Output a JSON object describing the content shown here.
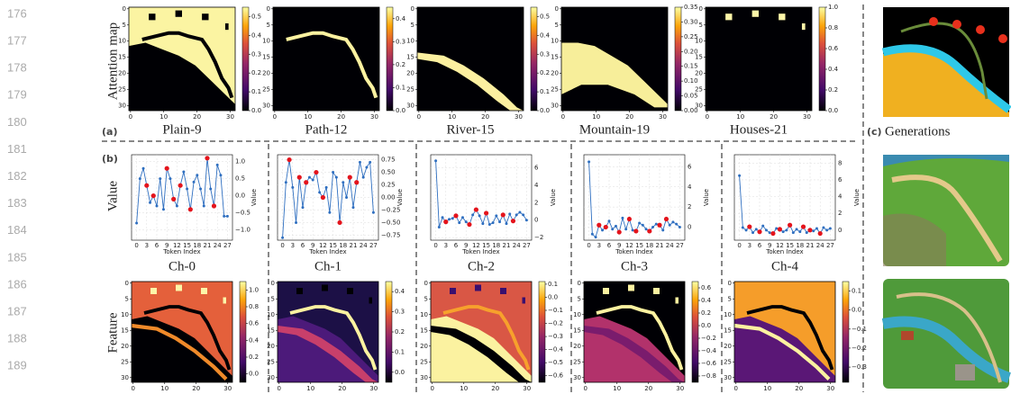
{
  "line_numbers": [
    "176",
    "177",
    "178",
    "179",
    "180",
    "181",
    "182",
    "183",
    "184",
    "185",
    "186",
    "187",
    "188",
    "189"
  ],
  "panel_a": {
    "label": "(a)",
    "row_label": "Attention map",
    "xticks": [
      0,
      10,
      20,
      30
    ],
    "yticks": [
      0,
      5,
      10,
      15,
      20,
      25,
      30
    ],
    "maps": [
      {
        "title": "Plain-9",
        "colorbar": {
          "lim": [
            0,
            0.55
          ],
          "ticks": [
            {
              "value": 0,
              "label": "0.0"
            },
            {
              "value": 0.1,
              "label": "0.1"
            },
            {
              "value": 0.2,
              "label": "0.2"
            },
            {
              "value": 0.3,
              "label": "0.3"
            },
            {
              "value": 0.4,
              "label": "0.4"
            },
            {
              "value": 0.5,
              "label": "0.5"
            }
          ]
        }
      },
      {
        "title": "Path-12",
        "colorbar": {
          "lim": [
            0,
            0.45
          ],
          "ticks": [
            {
              "value": 0,
              "label": "0.0"
            },
            {
              "value": 0.1,
              "label": "0.1"
            },
            {
              "value": 0.2,
              "label": "0.2"
            },
            {
              "value": 0.3,
              "label": "0.3"
            },
            {
              "value": 0.4,
              "label": "0.4"
            }
          ]
        }
      },
      {
        "title": "River-15",
        "colorbar": {
          "lim": [
            0,
            0.55
          ],
          "ticks": [
            {
              "value": 0,
              "label": "0.0"
            },
            {
              "value": 0.1,
              "label": "0.1"
            },
            {
              "value": 0.2,
              "label": "0.2"
            },
            {
              "value": 0.3,
              "label": "0.3"
            },
            {
              "value": 0.4,
              "label": "0.4"
            },
            {
              "value": 0.5,
              "label": "0.5"
            }
          ]
        }
      },
      {
        "title": "Mountain-19",
        "colorbar": {
          "lim": [
            0,
            0.35
          ],
          "ticks": [
            {
              "value": 0,
              "label": "0.00"
            },
            {
              "value": 0.05,
              "label": "0.05"
            },
            {
              "value": 0.1,
              "label": "0.10"
            },
            {
              "value": 0.15,
              "label": "0.15"
            },
            {
              "value": 0.2,
              "label": "0.20"
            },
            {
              "value": 0.25,
              "label": "0.25"
            },
            {
              "value": 0.3,
              "label": "0.30"
            },
            {
              "value": 0.35,
              "label": "0.35"
            }
          ]
        }
      },
      {
        "title": "Houses-21",
        "colorbar": {
          "lim": [
            0,
            1.0
          ],
          "ticks": [
            {
              "value": 0,
              "label": "0.0"
            },
            {
              "value": 0.2,
              "label": "0.2"
            },
            {
              "value": 0.4,
              "label": "0.4"
            },
            {
              "value": 0.6,
              "label": "0.6"
            },
            {
              "value": 0.8,
              "label": "0.8"
            },
            {
              "value": 1.0,
              "label": "1.0"
            }
          ]
        }
      }
    ]
  },
  "panel_b": {
    "label": "(b)",
    "value_row_label": "Value",
    "feature_row_label": "Feature",
    "x_label": "Token Index",
    "y_label": "Value",
    "xlim": [
      -1.5,
      28.5
    ],
    "xticks": [
      0,
      3,
      6,
      9,
      12,
      15,
      18,
      21,
      24,
      27
    ],
    "map_xticks": [
      0,
      10,
      20,
      30
    ],
    "map_yticks": [
      0,
      5,
      10,
      15,
      20,
      25,
      30
    ],
    "channels": [
      {
        "title": "Ch-0",
        "values": [
          -0.8,
          0.5,
          0.8,
          0.3,
          -0.2,
          0.0,
          -0.3,
          0.5,
          -0.4,
          0.8,
          0.5,
          -0.1,
          -0.3,
          0.3,
          0.7,
          0.2,
          -0.4,
          0.4,
          0.6,
          0.2,
          -0.3,
          1.1,
          0.2,
          -0.3,
          0.9,
          0.6,
          -0.6,
          -0.6
        ],
        "highlight": [
          3,
          5,
          9,
          11,
          13,
          16,
          21,
          23
        ],
        "ylim": [
          -1.3,
          1.2
        ],
        "yticks": [
          {
            "value": 1.0,
            "label": "1.0"
          },
          {
            "value": 0.5,
            "label": "0.5"
          },
          {
            "value": 0,
            "label": "0.0"
          },
          {
            "value": -0.5,
            "label": "−0.5"
          },
          {
            "value": -1.0,
            "label": "−1.0"
          }
        ],
        "colorbar": {
          "lim": [
            -0.1,
            1.1
          ],
          "ticks": [
            {
              "value": 0,
              "label": "0.0"
            },
            {
              "value": 0.2,
              "label": "0.2"
            },
            {
              "value": 0.4,
              "label": "0.4"
            },
            {
              "value": 0.6,
              "label": "0.6"
            },
            {
              "value": 0.8,
              "label": "0.8"
            },
            {
              "value": 1.0,
              "label": "1.0"
            }
          ]
        }
      },
      {
        "title": "Ch-1",
        "values": [
          -0.8,
          0.3,
          0.75,
          0.2,
          -0.5,
          0.4,
          -0.2,
          0.3,
          0.4,
          0.35,
          0.5,
          0.1,
          0.0,
          0.2,
          -0.3,
          0.5,
          0.4,
          -0.5,
          0.3,
          0.0,
          0.4,
          -0.2,
          0.3,
          0.7,
          0.4,
          0.6,
          0.7,
          -0.3
        ],
        "highlight": [
          2,
          5,
          7,
          10,
          12,
          17,
          20,
          22
        ],
        "ylim": [
          -0.85,
          0.85
        ],
        "yticks": [
          {
            "value": 0.75,
            "label": "0.75"
          },
          {
            "value": 0.5,
            "label": "0.50"
          },
          {
            "value": 0.25,
            "label": "0.25"
          },
          {
            "value": 0,
            "label": "0.00"
          },
          {
            "value": -0.25,
            "label": "−0.25"
          },
          {
            "value": -0.5,
            "label": "−0.50"
          },
          {
            "value": -0.75,
            "label": "−0.75"
          }
        ],
        "colorbar": {
          "lim": [
            -0.05,
            0.45
          ],
          "ticks": [
            {
              "value": 0,
              "label": "0.0"
            },
            {
              "value": 0.1,
              "label": "0.1"
            },
            {
              "value": 0.2,
              "label": "0.2"
            },
            {
              "value": 0.3,
              "label": "0.3"
            },
            {
              "value": 0.4,
              "label": "0.4"
            }
          ]
        }
      },
      {
        "title": "Ch-2",
        "values": [
          6.8,
          -0.8,
          0.3,
          -0.2,
          0.1,
          0.2,
          0.5,
          -0.3,
          0.3,
          -0.2,
          -0.5,
          0.6,
          1.2,
          0.5,
          -0.4,
          0.8,
          -0.5,
          -0.3,
          0.5,
          -0.2,
          0.6,
          -0.4,
          0.7,
          -0.1,
          0.6,
          0.9,
          0.6,
          0.0
        ],
        "highlight": [
          3,
          6,
          10,
          12,
          15,
          20,
          23
        ],
        "ylim": [
          -2.3,
          7.5
        ],
        "yticks": [
          {
            "value": 6,
            "label": "6"
          },
          {
            "value": 4,
            "label": "4"
          },
          {
            "value": 2,
            "label": "2"
          },
          {
            "value": 0,
            "label": "0"
          },
          {
            "value": -2,
            "label": "−2"
          }
        ],
        "colorbar": {
          "lim": [
            -0.65,
            0.12
          ],
          "ticks": [
            {
              "value": 0.1,
              "label": "0.1"
            },
            {
              "value": 0,
              "label": "0.0"
            },
            {
              "value": -0.1,
              "label": "−0.1"
            },
            {
              "value": -0.2,
              "label": "−0.2"
            },
            {
              "value": -0.3,
              "label": "−0.3"
            },
            {
              "value": -0.4,
              "label": "−0.4"
            },
            {
              "value": -0.5,
              "label": "−0.5"
            },
            {
              "value": -0.6,
              "label": "−0.6"
            }
          ]
        }
      },
      {
        "title": "Ch-3",
        "values": [
          6.5,
          -0.7,
          -1.0,
          0.2,
          -0.3,
          0.0,
          0.6,
          -0.2,
          0.1,
          -0.5,
          0.9,
          -0.2,
          0.8,
          -0.3,
          -0.4,
          0.4,
          0.2,
          -0.2,
          -0.4,
          0.0,
          0.3,
          0.2,
          -0.3,
          0.8,
          0.2,
          0.5,
          0.3,
          0.0
        ],
        "highlight": [
          3,
          5,
          9,
          12,
          14,
          18,
          21,
          23
        ],
        "ylim": [
          -1.3,
          7.2
        ],
        "yticks": [
          {
            "value": 6,
            "label": "6"
          },
          {
            "value": 4,
            "label": "4"
          },
          {
            "value": 2,
            "label": "2"
          },
          {
            "value": 0,
            "label": "0"
          }
        ],
        "colorbar": {
          "lim": [
            -0.9,
            0.7
          ],
          "ticks": [
            {
              "value": 0.6,
              "label": "0.6"
            },
            {
              "value": 0.4,
              "label": "0.4"
            },
            {
              "value": 0.2,
              "label": "0.2"
            },
            {
              "value": 0,
              "label": "0.0"
            },
            {
              "value": -0.2,
              "label": "−0.2"
            },
            {
              "value": -0.4,
              "label": "−0.4"
            },
            {
              "value": -0.6,
              "label": "−0.6"
            },
            {
              "value": -0.8,
              "label": "−0.8"
            }
          ]
        }
      },
      {
        "title": "Ch-4",
        "values": [
          6.5,
          0.3,
          0.0,
          0.4,
          -0.3,
          0.1,
          -0.2,
          0.5,
          0.0,
          -0.3,
          -0.4,
          0.2,
          0.1,
          -0.2,
          0.0,
          0.6,
          -0.3,
          0.1,
          -0.2,
          0.4,
          -0.3,
          0.0,
          -0.1,
          0.2,
          -0.4,
          0.3,
          0.0,
          0.2
        ],
        "highlight": [
          3,
          6,
          10,
          12,
          15,
          19,
          21,
          24
        ],
        "ylim": [
          -1.2,
          9
        ],
        "yticks": [
          {
            "value": 8,
            "label": "8"
          },
          {
            "value": 6,
            "label": "6"
          },
          {
            "value": 4,
            "label": "4"
          },
          {
            "value": 2,
            "label": "2"
          },
          {
            "value": 0,
            "label": "0"
          }
        ],
        "colorbar": {
          "lim": [
            -0.38,
            0.15
          ],
          "ticks": [
            {
              "value": 0.1,
              "label": "0.1"
            },
            {
              "value": 0,
              "label": "0.0"
            },
            {
              "value": -0.1,
              "label": "−0.1"
            },
            {
              "value": -0.2,
              "label": "−0.2"
            },
            {
              "value": -0.3,
              "label": "−0.3"
            }
          ]
        }
      }
    ]
  },
  "panel_c": {
    "label": "(c)",
    "title": "Generations"
  }
}
